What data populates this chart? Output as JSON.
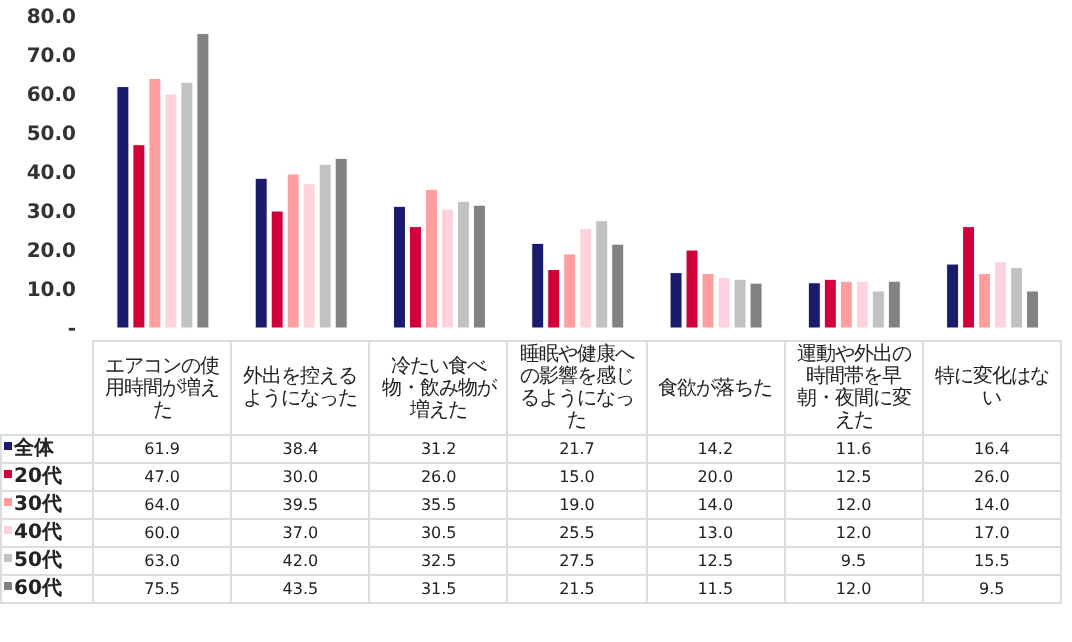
{
  "chart_data": {
    "type": "bar",
    "categories": [
      "エアコンの使用時間が増えた",
      "外出を控えるようになった",
      "冷たい食べ物・飲み物が増えた",
      "睡眠や健康への影響を感じるようになった",
      "食欲が落ちた",
      "運動や外出の時間帯を早朝・夜間に変えた",
      "特に変化はない"
    ],
    "series": [
      {
        "name": "全体",
        "color": "#1b1b6e",
        "values": [
          61.9,
          38.4,
          31.2,
          21.7,
          14.2,
          11.6,
          16.4
        ],
        "value_labels": [
          "61.9",
          "38.4",
          "31.2",
          "21.7",
          "14.2",
          "11.6",
          "16.4"
        ]
      },
      {
        "name": "20代",
        "color": "#d2003a",
        "values": [
          47.0,
          30.0,
          26.0,
          15.0,
          20.0,
          12.5,
          26.0
        ],
        "value_labels": [
          "47.0",
          "30.0",
          "26.0",
          "15.0",
          "20.0",
          "12.5",
          "26.0"
        ]
      },
      {
        "name": "30代",
        "color": "#ff9e9e",
        "values": [
          64.0,
          39.5,
          35.5,
          19.0,
          14.0,
          12.0,
          14.0
        ],
        "value_labels": [
          "64.0",
          "39.5",
          "35.5",
          "19.0",
          "14.0",
          "12.0",
          "14.0"
        ]
      },
      {
        "name": "40代",
        "color": "#ffd3dd",
        "values": [
          60.0,
          37.0,
          30.5,
          25.5,
          13.0,
          12.0,
          17.0
        ],
        "value_labels": [
          "60.0",
          "37.0",
          "30.5",
          "25.5",
          "13.0",
          "12.0",
          "17.0"
        ]
      },
      {
        "name": "50代",
        "color": "#c2c2c2",
        "values": [
          63.0,
          42.0,
          32.5,
          27.5,
          12.5,
          9.5,
          15.5
        ],
        "value_labels": [
          "63.0",
          "42.0",
          "32.5",
          "27.5",
          "12.5",
          "9.5",
          "15.5"
        ]
      },
      {
        "name": "60代",
        "color": "#828282",
        "values": [
          75.5,
          43.5,
          31.5,
          21.5,
          11.5,
          12.0,
          9.5
        ],
        "value_labels": [
          "75.5",
          "43.5",
          "31.5",
          "21.5",
          "11.5",
          "12.0",
          "9.5"
        ]
      }
    ],
    "ylim": [
      0,
      80
    ],
    "yticks": [
      {
        "value": 0,
        "label": "-"
      },
      {
        "value": 10,
        "label": "10.0"
      },
      {
        "value": 20,
        "label": "20.0"
      },
      {
        "value": 30,
        "label": "30.0"
      },
      {
        "value": 40,
        "label": "40.0"
      },
      {
        "value": 50,
        "label": "50.0"
      },
      {
        "value": 60,
        "label": "60.0"
      },
      {
        "value": 70,
        "label": "70.0"
      },
      {
        "value": 80,
        "label": "80.0"
      }
    ],
    "grid": false,
    "legend": "bottom"
  }
}
